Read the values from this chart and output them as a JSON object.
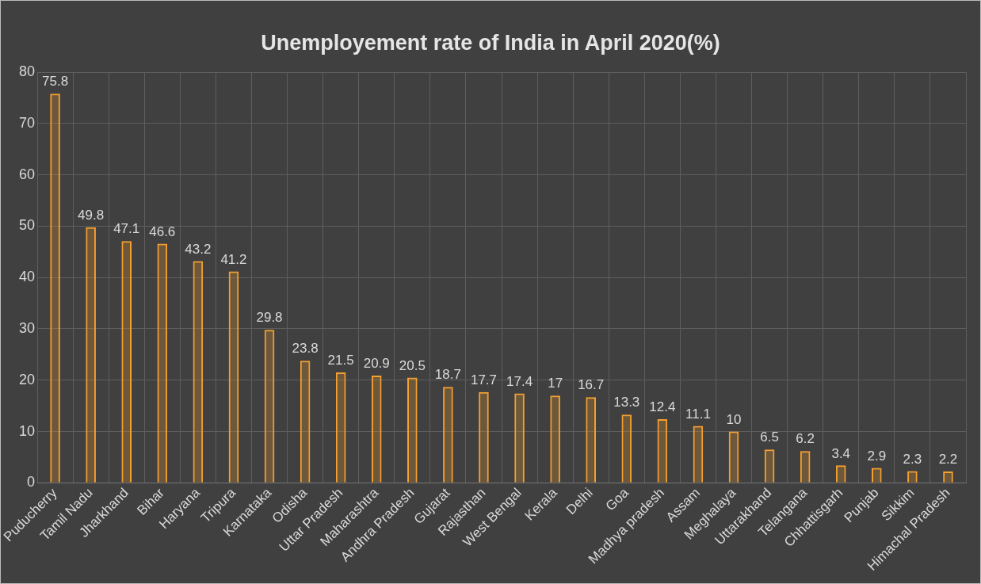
{
  "chart_data": {
    "type": "bar",
    "title": "Unemployement rate of India in April 2020(%)",
    "categories": [
      "Puducherry",
      "Tamil Nadu",
      "Jharkhand",
      "Bihar",
      "Haryana",
      "Tripura",
      "Karnataka",
      "Odisha",
      "Uttar Pradesh",
      "Maharashtra",
      "Andhra Pradesh",
      "Gujarat",
      "Rajasthan",
      "West Bengal",
      "Kerala",
      "Delhi",
      "Goa",
      "Madhya pradesh",
      "Assam",
      "Meghalaya",
      "Uttarakhand",
      "Telangana",
      "Chhattisgarh",
      "Punjab",
      "Sikkim",
      "Himachal Pradesh"
    ],
    "values": [
      75.8,
      49.8,
      47.1,
      46.6,
      43.2,
      41.2,
      29.8,
      23.8,
      21.5,
      20.9,
      20.5,
      18.7,
      17.7,
      17.4,
      17,
      16.7,
      13.3,
      12.4,
      11.1,
      10,
      6.5,
      6.2,
      3.4,
      2.9,
      2.3,
      2.2
    ],
    "color": "#f5a030",
    "ylim": [
      0,
      80
    ],
    "yticks": [
      0,
      10,
      20,
      30,
      40,
      50,
      60,
      70,
      80
    ],
    "grid": true,
    "data_labels": true
  }
}
